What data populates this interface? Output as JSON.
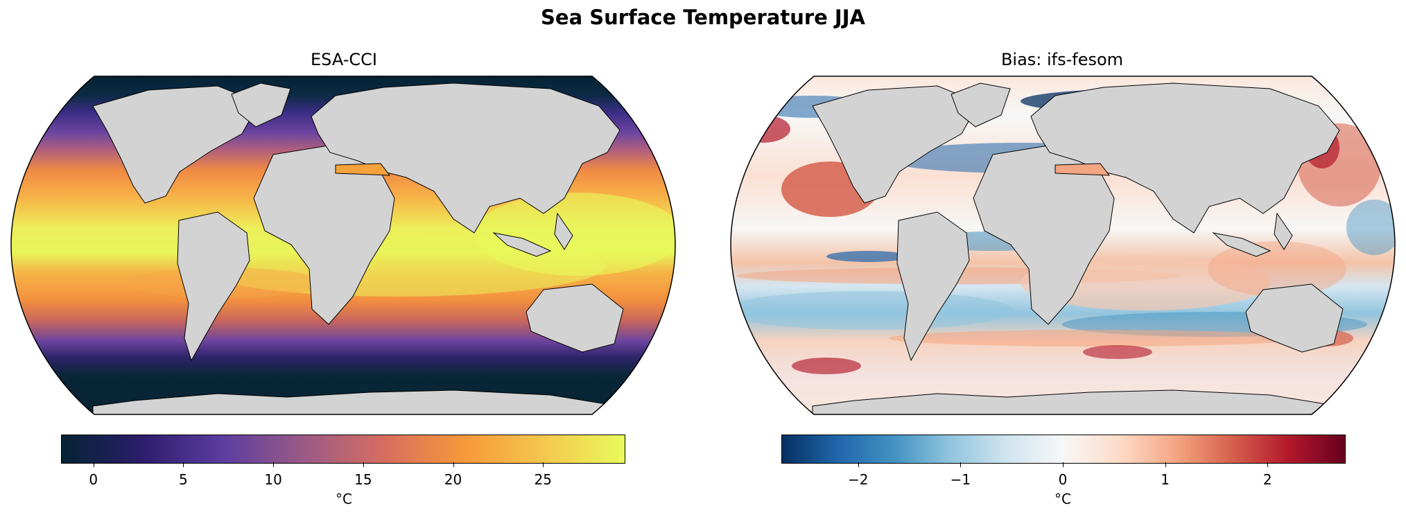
{
  "figure": {
    "title": "Sea Surface Temperature JJA"
  },
  "panels": [
    {
      "title": "ESA-CCI",
      "colormap": "thermal",
      "colorbar": {
        "ticks": [
          {
            "value": 0,
            "label": "0"
          },
          {
            "value": 5,
            "label": "5"
          },
          {
            "value": 10,
            "label": "10"
          },
          {
            "value": 15,
            "label": "15"
          },
          {
            "value": 20,
            "label": "20"
          },
          {
            "value": 25,
            "label": "25"
          }
        ],
        "range": [
          -1.8,
          29.5
        ],
        "unit": "°C"
      }
    },
    {
      "title": "Bias: ifs-fesom",
      "colormap": "RdBu_r",
      "colorbar": {
        "ticks": [
          {
            "value": -2,
            "label": "−2"
          },
          {
            "value": -1,
            "label": "−1"
          },
          {
            "value": 0,
            "label": "0"
          },
          {
            "value": 1,
            "label": "1"
          },
          {
            "value": 2,
            "label": "2"
          }
        ],
        "range": [
          -2.75,
          2.75
        ],
        "unit": "°C"
      }
    }
  ],
  "colors": {
    "land": "#d3d3d3",
    "coast": "#000000",
    "thermal_stops": [
      "#042333",
      "#2c1d6b",
      "#5b3da0",
      "#9a5a86",
      "#d66d61",
      "#f6983a",
      "#f5c84d",
      "#e8fa5b"
    ],
    "bias_stops": [
      "#053061",
      "#2166ac",
      "#4393c3",
      "#92c5de",
      "#d1e5f0",
      "#f7f7f7",
      "#fddbc7",
      "#f4a582",
      "#d6604d",
      "#b2182b",
      "#67001f"
    ]
  }
}
